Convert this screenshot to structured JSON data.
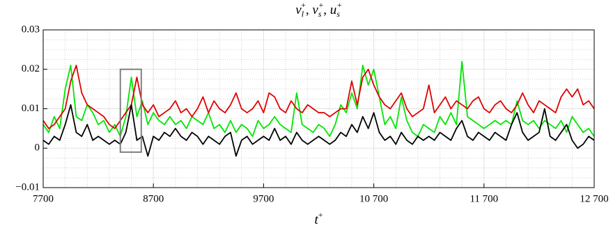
{
  "chart_data": {
    "type": "line",
    "title_terms": [
      {
        "symbol": "v",
        "sub": "l",
        "sup": "+"
      },
      {
        "symbol": "v",
        "sub": "s",
        "sup": "+"
      },
      {
        "symbol": "u",
        "sub": "s",
        "sup": "+"
      }
    ],
    "title_separator": ", ",
    "x_label": {
      "symbol": "t",
      "sup": "+"
    },
    "x": [
      7700,
      7750,
      7800,
      7850,
      7900,
      7950,
      8000,
      8050,
      8100,
      8150,
      8200,
      8250,
      8300,
      8350,
      8400,
      8450,
      8500,
      8550,
      8600,
      8650,
      8700,
      8750,
      8800,
      8850,
      8900,
      8950,
      9000,
      9050,
      9100,
      9150,
      9200,
      9250,
      9300,
      9350,
      9400,
      9450,
      9500,
      9550,
      9600,
      9650,
      9700,
      9750,
      9800,
      9850,
      9900,
      9950,
      10000,
      10050,
      10100,
      10150,
      10200,
      10250,
      10300,
      10350,
      10400,
      10450,
      10500,
      10550,
      10600,
      10650,
      10700,
      10750,
      10800,
      10850,
      10900,
      10950,
      11000,
      11050,
      11100,
      11150,
      11200,
      11250,
      11300,
      11350,
      11400,
      11450,
      11500,
      11550,
      11600,
      11650,
      11700,
      11750,
      11800,
      11850,
      11900,
      11950,
      12000,
      12050,
      12100,
      12150,
      12200,
      12250,
      12300,
      12350,
      12400,
      12450,
      12500,
      12550,
      12600,
      12650,
      12700
    ],
    "series": [
      {
        "color": "#00e600",
        "values": [
          0.006,
          0.004,
          0.008,
          0.005,
          0.015,
          0.021,
          0.008,
          0.007,
          0.011,
          0.009,
          0.006,
          0.007,
          0.004,
          0.006,
          0.003,
          0.008,
          0.018,
          0.008,
          0.012,
          0.006,
          0.009,
          0.007,
          0.006,
          0.008,
          0.006,
          0.007,
          0.005,
          0.008,
          0.007,
          0.006,
          0.009,
          0.005,
          0.006,
          0.004,
          0.007,
          0.004,
          0.006,
          0.005,
          0.003,
          0.007,
          0.005,
          0.006,
          0.008,
          0.006,
          0.005,
          0.004,
          0.014,
          0.006,
          0.005,
          0.004,
          0.006,
          0.005,
          0.003,
          0.006,
          0.011,
          0.009,
          0.014,
          0.01,
          0.021,
          0.016,
          0.02,
          0.013,
          0.006,
          0.008,
          0.005,
          0.013,
          0.007,
          0.004,
          0.003,
          0.006,
          0.005,
          0.004,
          0.008,
          0.006,
          0.009,
          0.006,
          0.022,
          0.008,
          0.007,
          0.006,
          0.005,
          0.006,
          0.007,
          0.006,
          0.007,
          0.006,
          0.012,
          0.007,
          0.006,
          0.007,
          0.005,
          0.007,
          0.006,
          0.005,
          0.007,
          0.004,
          0.008,
          0.006,
          0.004,
          0.005,
          0.003
        ]
      },
      {
        "color": "#e00000",
        "values": [
          0.007,
          0.005,
          0.006,
          0.008,
          0.01,
          0.017,
          0.021,
          0.014,
          0.011,
          0.01,
          0.009,
          0.008,
          0.006,
          0.005,
          0.007,
          0.009,
          0.011,
          0.018,
          0.011,
          0.009,
          0.011,
          0.008,
          0.009,
          0.01,
          0.012,
          0.009,
          0.01,
          0.008,
          0.01,
          0.013,
          0.009,
          0.012,
          0.01,
          0.009,
          0.011,
          0.014,
          0.01,
          0.009,
          0.01,
          0.012,
          0.009,
          0.014,
          0.013,
          0.01,
          0.009,
          0.012,
          0.01,
          0.009,
          0.011,
          0.01,
          0.009,
          0.009,
          0.008,
          0.009,
          0.01,
          0.01,
          0.017,
          0.011,
          0.018,
          0.02,
          0.016,
          0.013,
          0.011,
          0.01,
          0.012,
          0.014,
          0.01,
          0.008,
          0.009,
          0.01,
          0.016,
          0.009,
          0.011,
          0.013,
          0.01,
          0.012,
          0.011,
          0.01,
          0.012,
          0.013,
          0.01,
          0.009,
          0.011,
          0.012,
          0.01,
          0.009,
          0.011,
          0.014,
          0.011,
          0.009,
          0.012,
          0.011,
          0.01,
          0.009,
          0.013,
          0.015,
          0.013,
          0.015,
          0.011,
          0.012,
          0.01
        ]
      },
      {
        "color": "#000000",
        "values": [
          0.002,
          0.001,
          0.003,
          0.002,
          0.006,
          0.011,
          0.004,
          0.003,
          0.006,
          0.002,
          0.003,
          0.002,
          0.001,
          0.002,
          0.001,
          0.004,
          0.011,
          0.002,
          0.003,
          -0.002,
          0.003,
          0.002,
          0.004,
          0.003,
          0.005,
          0.003,
          0.002,
          0.004,
          0.003,
          0.001,
          0.003,
          0.002,
          0.001,
          0.003,
          0.004,
          -0.002,
          0.002,
          0.003,
          0.001,
          0.002,
          0.003,
          0.002,
          0.005,
          0.002,
          0.003,
          0.001,
          0.004,
          0.002,
          0.001,
          0.002,
          0.003,
          0.002,
          0.001,
          0.002,
          0.004,
          0.003,
          0.006,
          0.004,
          0.008,
          0.005,
          0.009,
          0.004,
          0.002,
          0.003,
          0.001,
          0.004,
          0.002,
          0.001,
          0.003,
          0.002,
          0.003,
          0.002,
          0.004,
          0.003,
          0.002,
          0.005,
          0.007,
          0.003,
          0.002,
          0.004,
          0.003,
          0.002,
          0.004,
          0.003,
          0.002,
          0.006,
          0.009,
          0.004,
          0.002,
          0.003,
          0.004,
          0.01,
          0.003,
          0.002,
          0.004,
          0.006,
          0.002,
          0.0,
          0.001,
          0.003,
          0.002
        ]
      }
    ],
    "highlight_box": {
      "x": [
        8400,
        8590
      ],
      "y": [
        -0.001,
        0.02
      ],
      "color": "#808080"
    },
    "xlim": [
      7700,
      12700
    ],
    "xticks": [
      7700,
      8700,
      9700,
      {
        "value": 10700,
        "label": "10 700"
      },
      {
        "value": 11700,
        "label": "11 700"
      },
      {
        "value": 12700,
        "label": "12 700"
      }
    ],
    "ylim": [
      -0.01,
      0.03
    ],
    "yticks": [
      {
        "value": -0.01,
        "label": "−0.01"
      },
      0,
      0.01,
      0.02,
      0.03
    ],
    "grid": true,
    "minor_grid": true
  }
}
